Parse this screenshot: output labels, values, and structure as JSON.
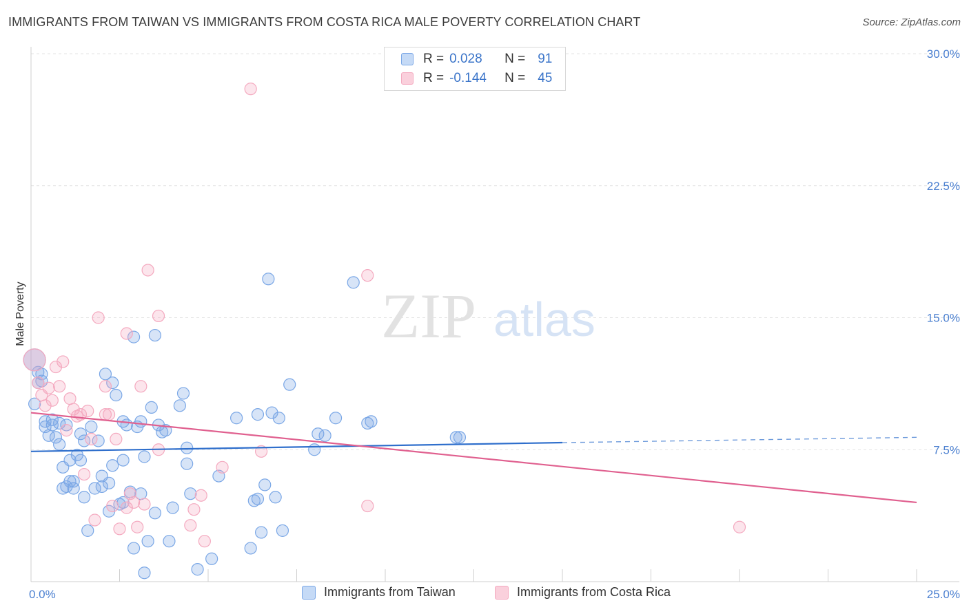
{
  "title": "IMMIGRANTS FROM TAIWAN VS IMMIGRANTS FROM COSTA RICA MALE POVERTY CORRELATION CHART",
  "source": "Source: ZipAtlas.com",
  "watermark": {
    "zip": "ZIP",
    "atlas": "atlas"
  },
  "legend": {
    "r_label": "R =",
    "n_label": "N =",
    "rows": [
      {
        "r": "0.028",
        "n": "91",
        "color": "#a9c8f0"
      },
      {
        "r": "-0.144",
        "n": "45",
        "color": "#f5b8ca"
      }
    ]
  },
  "bottom_legend": [
    "Immigrants from Taiwan",
    "Immigrants from Costa Rica"
  ],
  "chart_data": {
    "type": "scatter",
    "title": "IMMIGRANTS FROM TAIWAN VS IMMIGRANTS FROM COSTA RICA MALE POVERTY CORRELATION CHART",
    "xlabel": "",
    "ylabel": "Male Poverty",
    "xlim": [
      0,
      25
    ],
    "ylim": [
      0,
      31
    ],
    "x_tick_labels": [
      {
        "v": 0,
        "label": "0.0%"
      },
      {
        "v": 25,
        "label": "25.0%"
      }
    ],
    "y_ticks": [
      {
        "v": 7.5,
        "label": "7.5%"
      },
      {
        "v": 15,
        "label": "15.0%"
      },
      {
        "v": 22.5,
        "label": "22.5%"
      },
      {
        "v": 30,
        "label": "30.0%"
      }
    ],
    "grid": true,
    "series": [
      {
        "name": "Immigrants from Taiwan",
        "color": "#7aa7e6",
        "line_color": "#2f6fcc",
        "trend": {
          "x0": 0,
          "y0": 7.4,
          "x1": 15,
          "y1": 7.9,
          "dash_to_x": 25,
          "dash_to_y": 8.2
        },
        "points": [
          [
            0.1,
            12.6
          ],
          [
            0.1,
            10.1
          ],
          [
            0.2,
            11.3
          ],
          [
            0.3,
            11.8
          ],
          [
            0.3,
            11.4
          ],
          [
            0.4,
            9.1
          ],
          [
            0.4,
            8.8
          ],
          [
            0.5,
            8.3
          ],
          [
            0.6,
            9.2
          ],
          [
            0.6,
            8.9
          ],
          [
            0.7,
            8.2
          ],
          [
            0.8,
            9.0
          ],
          [
            0.8,
            7.8
          ],
          [
            0.9,
            6.5
          ],
          [
            0.9,
            5.3
          ],
          [
            1.0,
            8.9
          ],
          [
            1.0,
            5.4
          ],
          [
            1.1,
            6.9
          ],
          [
            1.2,
            5.7
          ],
          [
            1.2,
            5.3
          ],
          [
            1.3,
            7.2
          ],
          [
            1.4,
            6.9
          ],
          [
            1.4,
            8.4
          ],
          [
            1.5,
            4.8
          ],
          [
            1.5,
            8.0
          ],
          [
            1.6,
            2.9
          ],
          [
            1.7,
            8.8
          ],
          [
            1.8,
            5.3
          ],
          [
            1.9,
            8.0
          ],
          [
            2.0,
            5.4
          ],
          [
            2.0,
            6.0
          ],
          [
            2.1,
            11.8
          ],
          [
            2.2,
            4.0
          ],
          [
            2.2,
            5.6
          ],
          [
            2.3,
            6.6
          ],
          [
            2.3,
            11.3
          ],
          [
            2.4,
            10.6
          ],
          [
            2.5,
            4.4
          ],
          [
            2.6,
            4.5
          ],
          [
            2.6,
            6.9
          ],
          [
            2.7,
            8.9
          ],
          [
            2.8,
            5.1
          ],
          [
            2.9,
            13.9
          ],
          [
            2.9,
            1.9
          ],
          [
            3.0,
            8.8
          ],
          [
            3.1,
            5.0
          ],
          [
            3.1,
            9.1
          ],
          [
            3.2,
            0.5
          ],
          [
            3.2,
            7.1
          ],
          [
            3.3,
            2.3
          ],
          [
            3.4,
            9.9
          ],
          [
            3.5,
            14.0
          ],
          [
            3.5,
            3.9
          ],
          [
            3.6,
            8.9
          ],
          [
            3.7,
            8.5
          ],
          [
            3.9,
            2.3
          ],
          [
            4.0,
            4.2
          ],
          [
            4.2,
            10.0
          ],
          [
            4.3,
            10.7
          ],
          [
            4.4,
            7.6
          ],
          [
            4.4,
            6.7
          ],
          [
            4.5,
            5.0
          ],
          [
            4.7,
            0.7
          ],
          [
            5.1,
            1.3
          ],
          [
            5.3,
            6.0
          ],
          [
            5.8,
            9.3
          ],
          [
            6.2,
            1.9
          ],
          [
            6.4,
            9.5
          ],
          [
            6.4,
            4.7
          ],
          [
            6.5,
            2.8
          ],
          [
            6.6,
            5.5
          ],
          [
            6.7,
            17.2
          ],
          [
            6.8,
            9.6
          ],
          [
            6.9,
            4.8
          ],
          [
            7.0,
            9.3
          ],
          [
            7.1,
            2.9
          ],
          [
            7.3,
            11.2
          ],
          [
            8.0,
            7.5
          ],
          [
            8.1,
            8.4
          ],
          [
            8.3,
            8.3
          ],
          [
            8.6,
            9.3
          ],
          [
            9.1,
            17.0
          ],
          [
            9.5,
            9.0
          ],
          [
            9.6,
            9.1
          ],
          [
            12.0,
            8.2
          ],
          [
            12.1,
            8.2
          ],
          [
            0.2,
            11.9
          ],
          [
            1.1,
            5.7
          ],
          [
            2.6,
            9.1
          ],
          [
            3.8,
            8.6
          ],
          [
            6.3,
            4.6
          ]
        ]
      },
      {
        "name": "Immigrants from Costa Rica",
        "color": "#f4a9bf",
        "line_color": "#e0608f",
        "trend": {
          "x0": 0,
          "y0": 9.6,
          "x1": 25,
          "y1": 4.5
        },
        "points": [
          [
            0.1,
            12.6
          ],
          [
            0.2,
            11.3
          ],
          [
            0.3,
            10.6
          ],
          [
            0.4,
            10.0
          ],
          [
            0.5,
            11.0
          ],
          [
            0.6,
            10.3
          ],
          [
            0.7,
            12.2
          ],
          [
            0.8,
            11.1
          ],
          [
            0.9,
            12.5
          ],
          [
            1.0,
            8.6
          ],
          [
            1.1,
            10.4
          ],
          [
            1.2,
            9.8
          ],
          [
            1.3,
            9.4
          ],
          [
            1.4,
            9.5
          ],
          [
            1.5,
            6.1
          ],
          [
            1.6,
            9.7
          ],
          [
            1.7,
            8.1
          ],
          [
            1.8,
            3.5
          ],
          [
            1.9,
            15.0
          ],
          [
            2.1,
            11.1
          ],
          [
            2.1,
            9.5
          ],
          [
            2.2,
            9.5
          ],
          [
            2.3,
            4.3
          ],
          [
            2.4,
            8.1
          ],
          [
            2.5,
            3.0
          ],
          [
            2.7,
            4.2
          ],
          [
            2.7,
            14.1
          ],
          [
            2.8,
            5.0
          ],
          [
            2.9,
            4.5
          ],
          [
            3.0,
            3.1
          ],
          [
            3.1,
            11.1
          ],
          [
            3.2,
            4.4
          ],
          [
            3.3,
            17.7
          ],
          [
            3.6,
            7.5
          ],
          [
            3.6,
            15.1
          ],
          [
            4.5,
            3.2
          ],
          [
            4.6,
            4.1
          ],
          [
            4.8,
            4.9
          ],
          [
            4.9,
            2.3
          ],
          [
            5.4,
            6.5
          ],
          [
            6.2,
            28.0
          ],
          [
            6.5,
            7.4
          ],
          [
            9.5,
            17.4
          ],
          [
            9.5,
            4.3
          ],
          [
            20.0,
            3.1
          ]
        ]
      }
    ]
  }
}
